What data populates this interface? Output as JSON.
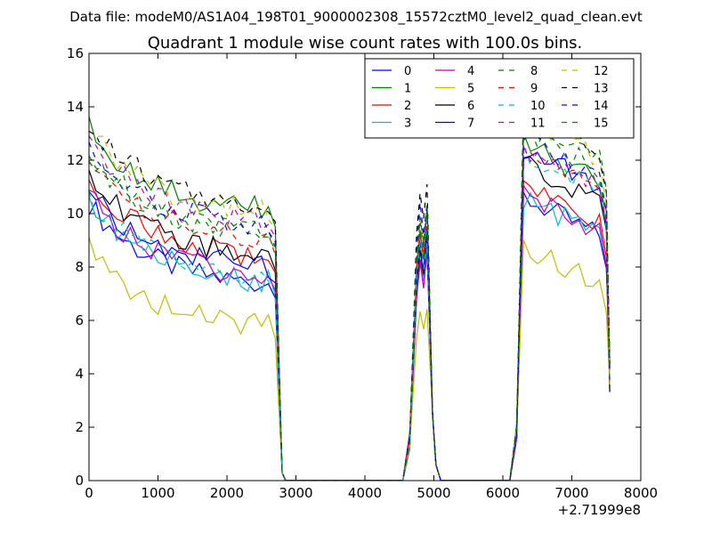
{
  "figure": {
    "suptitle": "Data file: modeM0/AS1A04_198T01_9000002308_15572cztM0_level2_quad_clean.evt",
    "title": "Quadrant 1 module wise count rates with 100.0s bins.",
    "offset_label": "+2.71999e8"
  },
  "chart_data": {
    "type": "line",
    "title": "Quadrant 1 module wise count rates with 100.0s bins.",
    "xlabel": "",
    "ylabel": "",
    "xlim": [
      0,
      8000
    ],
    "ylim": [
      0,
      16
    ],
    "x_offset": 271999000,
    "xticks": [
      0,
      1000,
      2000,
      3000,
      4000,
      5000,
      6000,
      7000,
      8000
    ],
    "yticks": [
      0,
      2,
      4,
      6,
      8,
      10,
      12,
      14,
      16
    ],
    "xtick_labels": [
      "0",
      "1000",
      "2000",
      "3000",
      "4000",
      "5000",
      "6000",
      "7000",
      "8000"
    ],
    "ytick_labels": [
      "0",
      "2",
      "4",
      "6",
      "8",
      "10",
      "12",
      "14",
      "16"
    ],
    "legend_position": "top-right",
    "legend_ncol": 4,
    "segments": [
      {
        "start": 0,
        "end": 2700
      },
      {
        "start": 4600,
        "end": 5100
      },
      {
        "start": 6200,
        "end": 7550
      }
    ],
    "series": [
      {
        "name": "0",
        "color": "#0000ff",
        "style": "solid",
        "base": 7.2,
        "seg2": 8.8,
        "seg3": 9.0
      },
      {
        "name": "1",
        "color": "#008000",
        "style": "solid",
        "base": 10.0,
        "seg2": 9.2,
        "seg3": 11.0
      },
      {
        "name": "2",
        "color": "#ff0000",
        "style": "solid",
        "base": 8.2,
        "seg2": 8.5,
        "seg3": 9.5
      },
      {
        "name": "3",
        "color": "#00bfbf",
        "style": "solid",
        "base": 7.3,
        "seg2": 8.3,
        "seg3": 9.0
      },
      {
        "name": "4",
        "color": "#bf00bf",
        "style": "solid",
        "base": 7.5,
        "seg2": 8.0,
        "seg3": 9.2
      },
      {
        "name": "5",
        "color": "#bfbf00",
        "style": "solid",
        "base": 5.6,
        "seg2": 6.3,
        "seg3": 7.2
      },
      {
        "name": "6",
        "color": "#000000",
        "style": "solid",
        "base": 8.3,
        "seg2": 8.6,
        "seg3": 10.2
      },
      {
        "name": "7",
        "color": "#0000ff",
        "style": "solid",
        "base": 7.8,
        "seg2": 8.7,
        "seg3": 10.8
      },
      {
        "name": "8",
        "color": "#008000",
        "style": "dashed",
        "base": 9.2,
        "seg2": 9.6,
        "seg3": 11.5
      },
      {
        "name": "9",
        "color": "#ff0000",
        "style": "dashed",
        "base": 8.9,
        "seg2": 9.4,
        "seg3": 11.0
      },
      {
        "name": "10",
        "color": "#00bfbf",
        "style": "dashed",
        "base": 7.4,
        "seg2": 8.8,
        "seg3": 10.6
      },
      {
        "name": "11",
        "color": "#bf00bf",
        "style": "dashed",
        "base": 9.6,
        "seg2": 9.8,
        "seg3": 10.9
      },
      {
        "name": "12",
        "color": "#bfbf00",
        "style": "dashed",
        "base": 9.9,
        "seg2": 10.0,
        "seg3": 11.8
      },
      {
        "name": "13",
        "color": "#000000",
        "style": "dashed",
        "base": 10.2,
        "seg2": 10.9,
        "seg3": 12.3
      },
      {
        "name": "14",
        "color": "#0000ff",
        "style": "dashed",
        "base": 9.4,
        "seg2": 10.2,
        "seg3": 11.3
      },
      {
        "name": "15",
        "color": "#008000",
        "style": "dashed",
        "base": 9.1,
        "seg2": 9.9,
        "seg3": 12.0
      }
    ]
  }
}
